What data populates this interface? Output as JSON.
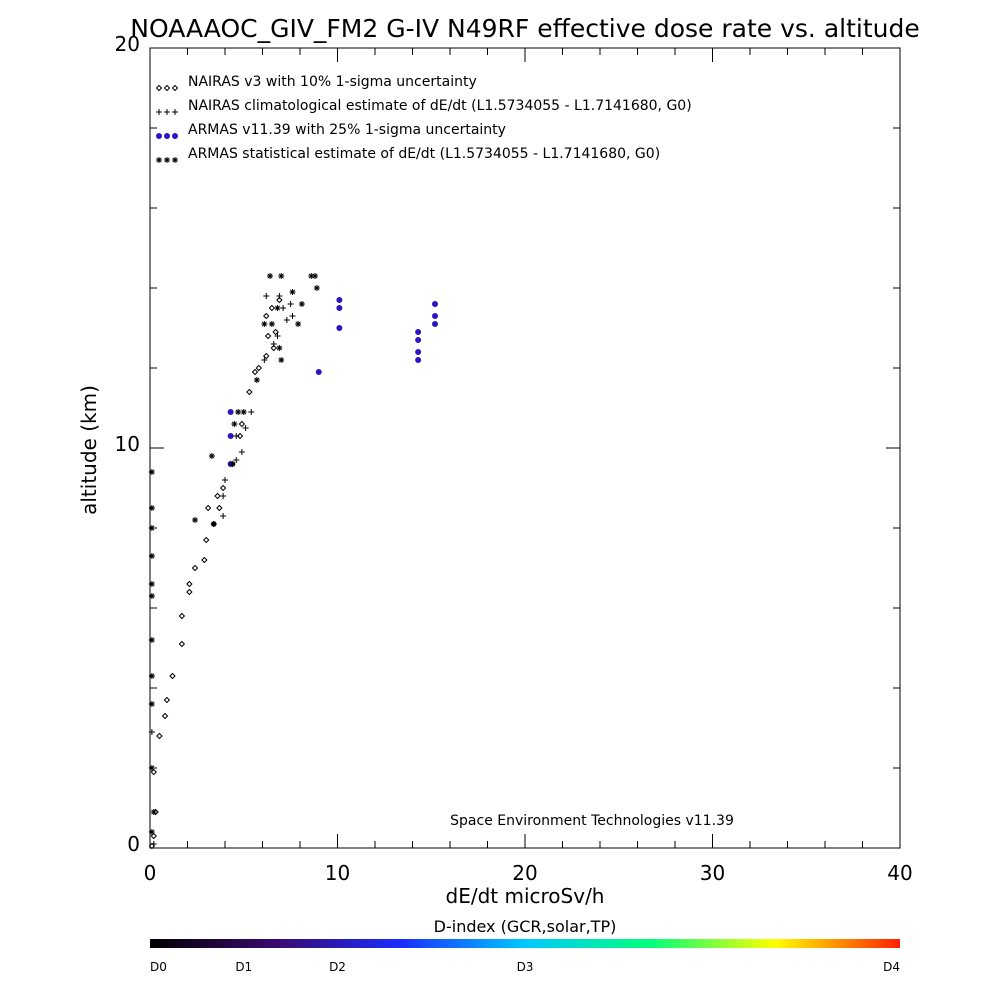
{
  "chart_data": {
    "type": "scatter",
    "title": "NOAAAOC_GIV_FM2 G-IV   N49RF  effective dose rate vs. altitude",
    "xlabel": "dE/dt microSv/h",
    "ylabel": "altitude (km)",
    "xlim": [
      0,
      40
    ],
    "ylim": [
      0,
      20
    ],
    "x_tick_labels": [
      "0",
      "10",
      "20",
      "30",
      "40"
    ],
    "y_tick_labels": [
      "0",
      "10",
      "20"
    ],
    "grid": false,
    "legend_placement": "top-left",
    "legend": [
      {
        "marker": "diamond",
        "symbols": "◇◇◇",
        "label": "NAIRAS v3 with 10% 1-sigma uncertainty"
      },
      {
        "marker": "plus",
        "symbols": "+++",
        "label": "NAIRAS climatological estimate of dE/dt (L1.5734055 - L1.7141680, G0)"
      },
      {
        "marker": "dot",
        "symbols": "●●●",
        "label": "ARMAS v11.39 with 25% 1-sigma uncertainty"
      },
      {
        "marker": "asterisk",
        "symbols": "***",
        "label": "ARMAS statistical estimate of dE/dt (L1.5734055 - L1.7141680, G0)"
      }
    ],
    "annotation": "Space Environment Technologies v11.39",
    "colorbar": {
      "title": "D-index (GCR,solar,TP)",
      "ticks": [
        {
          "label": "D0",
          "pos": 0
        },
        {
          "label": "D1",
          "pos": 0.125
        },
        {
          "label": "D2",
          "pos": 0.25
        },
        {
          "label": "D3",
          "pos": 0.5
        },
        {
          "label": "D4",
          "pos": 1
        }
      ],
      "stops": [
        "#000000",
        "#3a0a6e",
        "#1a2cff",
        "#00c8ff",
        "#00ff7a",
        "#ffff00",
        "#ff2000"
      ]
    },
    "series": [
      {
        "name": "NAIRAS v3 with 10% 1-sigma uncertainty",
        "marker": "diamond",
        "color": "#000000",
        "points": [
          [
            0.1,
            0.05
          ],
          [
            0.2,
            0.3
          ],
          [
            0.3,
            0.9
          ],
          [
            0.2,
            1.9
          ],
          [
            0.5,
            2.8
          ],
          [
            0.8,
            3.3
          ],
          [
            0.9,
            3.7
          ],
          [
            1.2,
            4.3
          ],
          [
            1.7,
            5.1
          ],
          [
            1.7,
            5.8
          ],
          [
            2.1,
            6.4
          ],
          [
            2.1,
            6.6
          ],
          [
            2.4,
            7.0
          ],
          [
            2.9,
            7.2
          ],
          [
            3.0,
            7.7
          ],
          [
            3.4,
            8.1
          ],
          [
            3.1,
            8.5
          ],
          [
            3.7,
            8.5
          ],
          [
            3.6,
            8.8
          ],
          [
            3.9,
            9.0
          ],
          [
            4.4,
            9.6
          ],
          [
            4.8,
            10.3
          ],
          [
            4.9,
            10.6
          ],
          [
            5.3,
            11.4
          ],
          [
            5.6,
            11.9
          ],
          [
            5.8,
            12.0
          ],
          [
            6.2,
            12.3
          ],
          [
            6.6,
            12.5
          ],
          [
            6.3,
            12.8
          ],
          [
            6.7,
            12.9
          ],
          [
            6.2,
            13.3
          ],
          [
            6.5,
            13.5
          ],
          [
            6.9,
            13.7
          ]
        ]
      },
      {
        "name": "NAIRAS climatological estimate of dE/dt (L1.5734055 - L1.7141680, G0)",
        "marker": "plus",
        "color": "#000000",
        "points": [
          [
            0.2,
            0.1
          ],
          [
            0.1,
            2.9
          ],
          [
            3.9,
            8.3
          ],
          [
            3.9,
            8.8
          ],
          [
            4.0,
            9.2
          ],
          [
            4.6,
            9.7
          ],
          [
            4.9,
            9.9
          ],
          [
            4.6,
            10.3
          ],
          [
            5.1,
            10.5
          ],
          [
            5.4,
            10.9
          ],
          [
            6.1,
            12.2
          ],
          [
            6.6,
            12.6
          ],
          [
            6.8,
            12.8
          ],
          [
            7.3,
            13.2
          ],
          [
            7.1,
            13.5
          ],
          [
            7.5,
            13.6
          ],
          [
            6.2,
            13.8
          ],
          [
            6.9,
            13.8
          ],
          [
            7.6,
            13.3
          ]
        ]
      },
      {
        "name": "ARMAS v11.39 with 25% 1-sigma uncertainty",
        "marker": "dot",
        "color": "#2b16c4",
        "points": [
          [
            4.3,
            9.6
          ],
          [
            4.3,
            10.3
          ],
          [
            4.3,
            10.9
          ],
          [
            9.0,
            11.9
          ],
          [
            10.1,
            13.0
          ],
          [
            10.1,
            13.5
          ],
          [
            10.1,
            13.7
          ],
          [
            14.3,
            12.2
          ],
          [
            14.3,
            12.4
          ],
          [
            14.3,
            12.7
          ],
          [
            14.3,
            12.9
          ],
          [
            15.2,
            13.1
          ],
          [
            15.2,
            13.3
          ],
          [
            15.2,
            13.6
          ]
        ]
      },
      {
        "name": "ARMAS statistical estimate of dE/dt (L1.5734055 - L1.7141680, G0)",
        "marker": "asterisk",
        "color": "#000000",
        "points": [
          [
            0.1,
            0.4
          ],
          [
            0.2,
            0.9
          ],
          [
            0.1,
            2.0
          ],
          [
            0.1,
            3.6
          ],
          [
            0.1,
            4.3
          ],
          [
            0.1,
            5.2
          ],
          [
            0.1,
            6.3
          ],
          [
            0.1,
            6.6
          ],
          [
            0.1,
            7.3
          ],
          [
            0.1,
            8.0
          ],
          [
            0.1,
            8.5
          ],
          [
            0.1,
            9.4
          ],
          [
            2.4,
            8.2
          ],
          [
            3.4,
            8.1
          ],
          [
            3.3,
            9.8
          ],
          [
            4.4,
            9.6
          ],
          [
            4.5,
            10.6
          ],
          [
            4.7,
            10.9
          ],
          [
            5.0,
            10.9
          ],
          [
            5.7,
            11.7
          ],
          [
            6.1,
            13.1
          ],
          [
            6.5,
            13.1
          ],
          [
            6.4,
            14.3
          ],
          [
            7.0,
            14.3
          ],
          [
            7.6,
            13.9
          ],
          [
            7.9,
            13.1
          ],
          [
            8.1,
            13.6
          ],
          [
            8.8,
            14.3
          ],
          [
            8.9,
            14.0
          ],
          [
            8.6,
            14.3
          ],
          [
            6.9,
            12.5
          ],
          [
            6.8,
            13.5
          ],
          [
            7.0,
            12.2
          ]
        ]
      }
    ]
  }
}
